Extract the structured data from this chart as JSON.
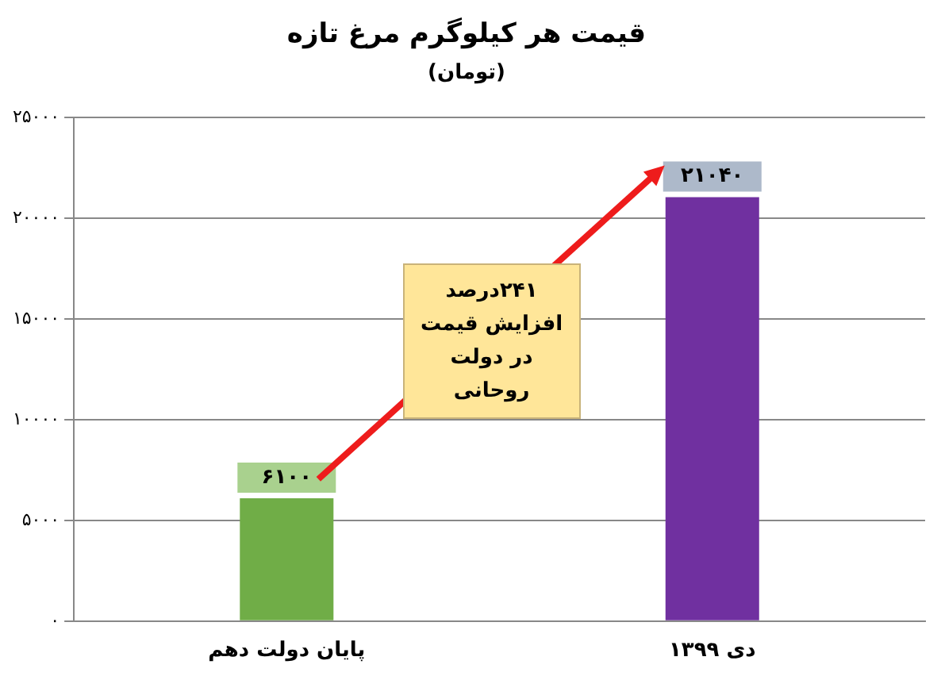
{
  "chart_data": {
    "type": "bar",
    "title": "قیمت هر کیلوگرم مرغ تازه",
    "subtitle": "(تومان)",
    "categories": [
      "پایان دولت دهم",
      "دی ۱۳۹۹"
    ],
    "values": [
      6100,
      21040
    ],
    "colors": [
      "#70ad47",
      "#7030a0"
    ],
    "value_labels": [
      "۶۱۰۰",
      "۲۱۰۴۰"
    ],
    "ylim": [
      0,
      25000
    ],
    "yticks": [
      {
        "value": 0,
        "label": "۰"
      },
      {
        "value": 5000,
        "label": "۵۰۰۰"
      },
      {
        "value": 10000,
        "label": "۱۰۰۰۰"
      },
      {
        "value": 15000,
        "label": "۱۵۰۰۰"
      },
      {
        "value": 20000,
        "label": "۲۰۰۰۰"
      },
      {
        "value": 25000,
        "label": "۲۵۰۰۰"
      }
    ],
    "grid": "y",
    "legend": false,
    "annotations": [
      "۲۴۱درصد افزایش قیمت در دولت روحانی"
    ]
  }
}
